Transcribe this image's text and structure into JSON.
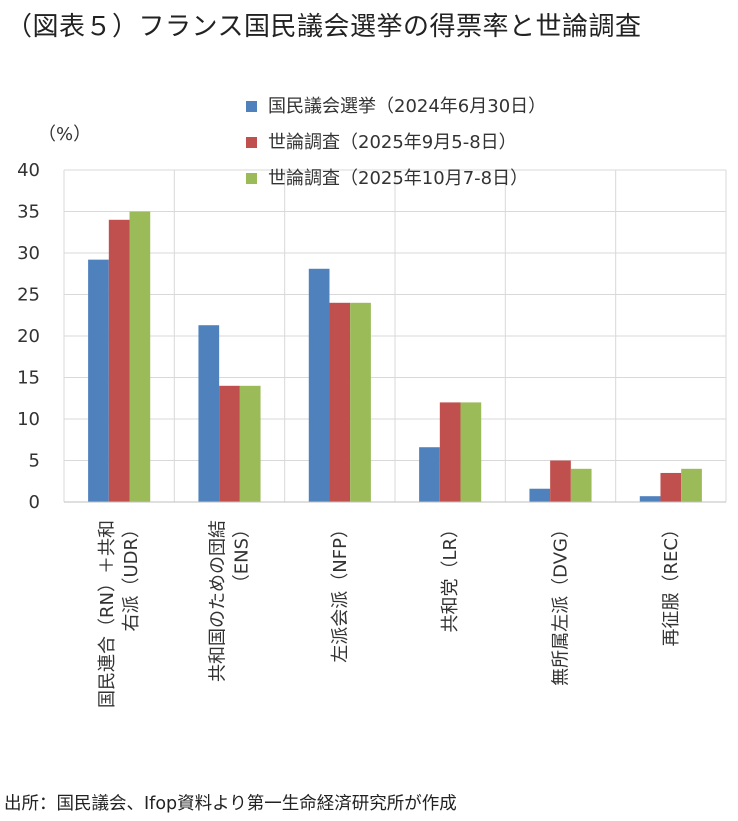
{
  "title": "（図表５）フランス国民議会選挙の得票率と世論調査",
  "source": "出所：国民議会、Ifop資料より第一生命経済研究所が作成",
  "chart_data": {
    "type": "bar",
    "unit_label": "（%）",
    "ylim": [
      0,
      40
    ],
    "yticks": [
      "0",
      "5",
      "10",
      "15",
      "20",
      "25",
      "30",
      "35",
      "40"
    ],
    "grid": true,
    "legend_position": "top-right",
    "categories": [
      [
        "国民連合（RN）＋共和",
        "右派（UDR）"
      ],
      [
        "共和国のための団結",
        "（ENS）"
      ],
      [
        "左派会派（NFP）"
      ],
      [
        "共和党（LR）"
      ],
      [
        "無所属左派（DVG）"
      ],
      [
        "再征服（REC）"
      ]
    ],
    "series": [
      {
        "name": "国民議会選挙（2024年6月30日）",
        "color": "#4f81bd",
        "values": [
          29.2,
          21.3,
          28.1,
          6.6,
          1.6,
          0.7
        ]
      },
      {
        "name": "世論調査（2025年9月5-8日）",
        "color": "#c0504d",
        "values": [
          34,
          14,
          24,
          12,
          5,
          3.5
        ]
      },
      {
        "name": "世論調査（2025年10月7-8日）",
        "color": "#9bbb59",
        "values": [
          35,
          14,
          24,
          12,
          4,
          4
        ]
      }
    ]
  }
}
